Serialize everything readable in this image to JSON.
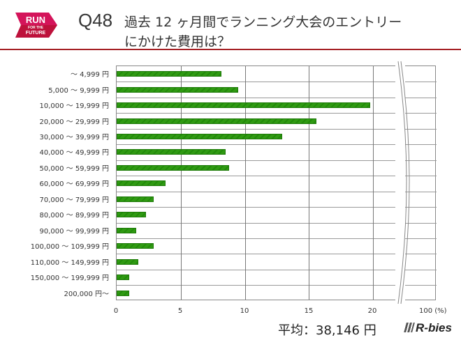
{
  "header": {
    "logo": {
      "line1": "RUN",
      "line2": "FOR THE",
      "line3": "FUTURE",
      "color": "#d4145a"
    },
    "question_number": "Q48",
    "title_line1": "過去 12 ヶ月間でランニング大会のエントリー",
    "title_line2": "にかけた費用は？",
    "rule_color": "#a52024"
  },
  "footer": {
    "average": "平均：38,146 円",
    "brand": "R-bies"
  },
  "chart_data": {
    "type": "bar",
    "orientation": "horizontal",
    "title": "過去 12 ヶ月間でランニング大会のエントリーにかけた費用は？",
    "xlabel": "(%)",
    "ylabel": "",
    "categories": [
      "～ 4,999 円",
      "5,000 ～ 9,999 円",
      "10,000 ～ 19,999 円",
      "20,000 ～ 29,999 円",
      "30,000 ～ 39,999 円",
      "40,000 ～ 49,999 円",
      "50,000 ～ 59,999 円",
      "60,000 ～ 69,999 円",
      "70,000 ～ 79,999 円",
      "80,000 ～ 89,999 円",
      "90,000 ～ 99,999 円",
      "100,000 ～ 109,999 円",
      "110,000 ～ 149,999 円",
      "150,000 ～ 199,999 円",
      "200,000 円～"
    ],
    "values": [
      8.2,
      9.5,
      19.8,
      15.6,
      12.9,
      8.5,
      8.8,
      3.8,
      2.9,
      2.3,
      1.5,
      2.9,
      1.7,
      1.0,
      1.0
    ],
    "x_ticks": [
      "0",
      "5",
      "10",
      "15",
      "20",
      "100 (%)"
    ],
    "xlim": [
      0,
      100
    ],
    "axis_break": "between 20 and 100",
    "grid": true,
    "bar_color": "#2f9a12",
    "annotation": "平均：38,146 円"
  }
}
